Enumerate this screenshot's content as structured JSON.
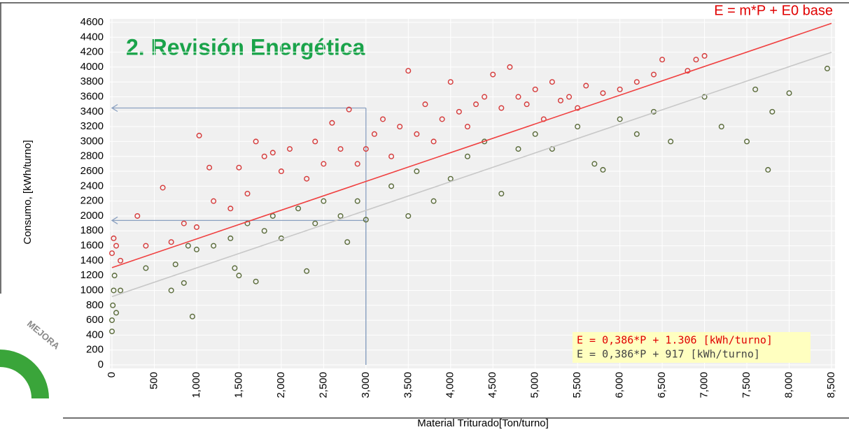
{
  "chart_data": {
    "type": "scatter",
    "title": "2. Revisión Energética",
    "formula": "E = m*P + E0 base",
    "badge": "MEJORA",
    "x_label": "Material Triturado[Ton/turno]",
    "y_label": "Consumo, [kWh/turno]",
    "xlim": [
      0,
      8500
    ],
    "ylim": [
      0,
      4600
    ],
    "xticks": [
      0,
      500,
      {
        "value": 1000,
        "label": "1,000"
      },
      {
        "value": 1500,
        "label": "1,500"
      },
      {
        "value": 2000,
        "label": "2,000"
      },
      {
        "value": 2500,
        "label": "2,500"
      },
      {
        "value": 3000,
        "label": "3,000"
      },
      {
        "value": 3500,
        "label": "3,500"
      },
      {
        "value": 4000,
        "label": "4,000"
      },
      {
        "value": 4500,
        "label": "4,500"
      },
      {
        "value": 5000,
        "label": "5,000"
      },
      {
        "value": 5500,
        "label": "5,500"
      },
      {
        "value": 6000,
        "label": "6,000"
      },
      {
        "value": 6500,
        "label": "6,500"
      },
      {
        "value": 7000,
        "label": "7,000"
      },
      {
        "value": 7500,
        "label": "7,500"
      },
      {
        "value": 8000,
        "label": "8,000"
      },
      {
        "value": 8500,
        "label": "8,500"
      }
    ],
    "yticks": [
      0,
      200,
      400,
      600,
      800,
      1000,
      1200,
      1400,
      1600,
      1800,
      2000,
      2200,
      2400,
      2600,
      2800,
      3000,
      3200,
      3400,
      3600,
      3800,
      4000,
      4200,
      4400,
      4600
    ],
    "grid": true,
    "series": [
      {
        "color": "#d63a3a",
        "x": [
          0,
          20,
          50,
          100,
          300,
          400,
          600,
          700,
          850,
          1000,
          1030,
          1150,
          1200,
          1400,
          1500,
          1600,
          1700,
          1800,
          1900,
          2000,
          2100,
          2300,
          2400,
          2500,
          2600,
          2700,
          2800,
          2900,
          3000,
          3100,
          3200,
          3300,
          3400,
          3500,
          3600,
          3700,
          3800,
          3900,
          4000,
          4100,
          4200,
          4300,
          4400,
          4500,
          4600,
          4700,
          4800,
          4900,
          5000,
          5100,
          5200,
          5300,
          5400,
          5500,
          5600,
          5800,
          6000,
          6200,
          6400,
          6500,
          6800,
          6900,
          7000
        ],
        "values": [
          1500,
          1700,
          1600,
          1400,
          2000,
          1600,
          2380,
          1650,
          1900,
          1850,
          3080,
          2650,
          2200,
          2100,
          2650,
          2300,
          3000,
          2800,
          2850,
          2600,
          2900,
          2500,
          3000,
          2700,
          3250,
          2900,
          3430,
          2700,
          2900,
          3100,
          3300,
          2800,
          3200,
          3950,
          3100,
          3500,
          3000,
          3300,
          3800,
          3400,
          3200,
          3500,
          3600,
          3900,
          3450,
          4000,
          3600,
          3500,
          3700,
          3300,
          3800,
          3550,
          3600,
          3450,
          3750,
          3650,
          3700,
          3800,
          3900,
          4100,
          3950,
          4100,
          4150
        ]
      },
      {
        "color": "#5a6b3a",
        "x": [
          0,
          0,
          10,
          20,
          30,
          50,
          100,
          400,
          700,
          750,
          850,
          900,
          950,
          1000,
          1200,
          1400,
          1450,
          1500,
          1600,
          1700,
          1800,
          1900,
          2000,
          2200,
          2300,
          2400,
          2500,
          2700,
          2780,
          2900,
          3000,
          3300,
          3500,
          3600,
          3800,
          4000,
          4200,
          4400,
          4600,
          4800,
          5000,
          5200,
          5500,
          5700,
          5800,
          6000,
          6200,
          6400,
          6600,
          7000,
          7200,
          7500,
          7600,
          7750,
          7800,
          8000,
          8450
        ],
        "values": [
          450,
          600,
          800,
          1000,
          1200,
          700,
          1000,
          1300,
          1000,
          1350,
          1100,
          1600,
          650,
          1550,
          1600,
          1700,
          1300,
          1200,
          1900,
          1120,
          1800,
          2000,
          1700,
          2100,
          1260,
          1900,
          2200,
          2000,
          1650,
          2200,
          1950,
          2400,
          2000,
          2600,
          2200,
          2500,
          2800,
          3000,
          2300,
          2900,
          3100,
          2900,
          3200,
          2700,
          2620,
          3300,
          3100,
          3400,
          3000,
          3600,
          3200,
          3000,
          3700,
          2620,
          3400,
          3650,
          3980
        ]
      }
    ],
    "fit_lines": [
      {
        "slope": 0.386,
        "intercept": 1306,
        "color": "#f04040",
        "label": "E = 0,386*P + 1.306 [kWh/turno]"
      },
      {
        "slope": 0.386,
        "intercept": 917,
        "color": "#c8c8c8",
        "label": "E = 0,386*P + 917 [kWh/turno]"
      }
    ],
    "guides": [
      {
        "x": 3000,
        "y": 3450
      },
      {
        "x": 3000,
        "y": 1940
      }
    ]
  }
}
